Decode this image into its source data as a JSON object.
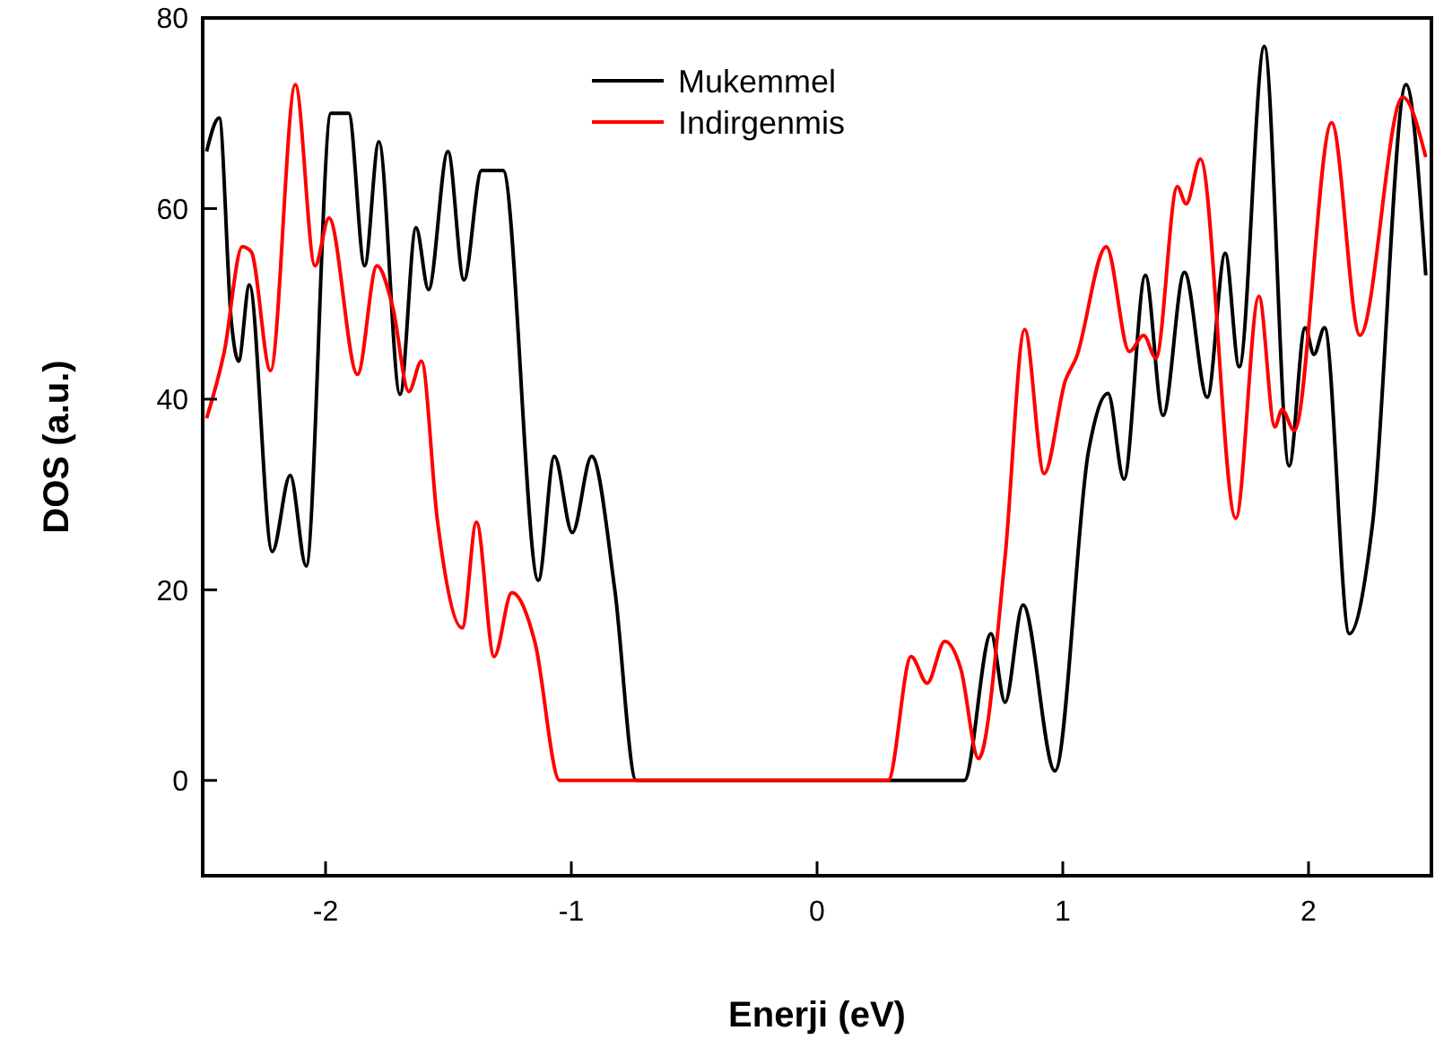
{
  "chart_data": {
    "type": "line",
    "xlabel": "Enerji (eV)",
    "ylabel": "DOS (a.u.)",
    "xlim": [
      -2.5,
      2.5
    ],
    "ylim": [
      -10,
      80
    ],
    "xticks": [
      -2,
      -1,
      0,
      1,
      2
    ],
    "yticks": [
      0,
      20,
      40,
      60,
      80
    ],
    "grid": false,
    "legend": "top",
    "marker": "none",
    "line_style": "solid",
    "series": [
      {
        "name": "Mukemmel",
        "color": "#000000",
        "x": [
          -2.484,
          -2.433,
          -2.383,
          -2.354,
          -2.31,
          -2.217,
          -2.144,
          -2.079,
          -1.978,
          -1.906,
          -1.841,
          -1.783,
          -1.697,
          -1.632,
          -1.581,
          -1.502,
          -1.437,
          -1.365,
          -1.278,
          -1.134,
          -1.069,
          -0.996,
          -0.917,
          -0.823,
          -0.736,
          0.0,
          0.599,
          0.708,
          0.765,
          0.838,
          0.968,
          1.105,
          1.184,
          1.249,
          1.336,
          1.408,
          1.495,
          1.588,
          1.661,
          1.718,
          1.82,
          1.921,
          1.986,
          2.022,
          2.065,
          2.166,
          2.26,
          2.397,
          2.477
        ],
        "values": [
          66,
          69.5,
          48,
          44,
          52,
          24,
          32,
          22.5,
          70,
          70,
          54,
          67,
          40.5,
          58,
          51.5,
          66,
          52.5,
          64,
          64,
          21,
          34,
          26,
          34,
          20,
          0,
          0,
          0,
          15.4,
          8.2,
          18.4,
          1,
          34.6,
          40.6,
          31.6,
          53,
          38.3,
          53.3,
          40.2,
          55.3,
          43.4,
          77,
          33,
          47.5,
          44.7,
          47.5,
          15.4,
          26.8,
          73,
          53
        ]
      },
      {
        "name": "Indirgenmis",
        "color": "#ff0000",
        "x": [
          -2.484,
          -2.412,
          -2.339,
          -2.303,
          -2.224,
          -2.123,
          -2.043,
          -1.986,
          -1.87,
          -1.791,
          -1.726,
          -1.661,
          -1.61,
          -1.545,
          -1.444,
          -1.386,
          -1.314,
          -1.242,
          -1.148,
          -1.047,
          0.0,
          0.289,
          0.383,
          0.448,
          0.52,
          0.585,
          0.657,
          0.765,
          0.845,
          0.924,
          1.011,
          1.054,
          1.177,
          1.271,
          1.329,
          1.379,
          1.466,
          1.502,
          1.56,
          1.704,
          1.798,
          1.863,
          1.892,
          1.942,
          2.094,
          2.209,
          2.383,
          2.477
        ],
        "values": [
          38,
          45,
          56,
          55.5,
          43,
          73,
          54,
          59,
          42.6,
          54,
          49.6,
          40.8,
          44,
          27.3,
          16,
          27.1,
          13,
          19.7,
          14.5,
          0,
          0,
          0,
          13,
          10.2,
          14.6,
          11.7,
          2.3,
          23.4,
          47.3,
          32.2,
          42,
          44.3,
          56,
          45,
          46.7,
          44.3,
          62.3,
          60.5,
          65.2,
          27.5,
          50.8,
          37.1,
          38.9,
          36.7,
          69,
          46.7,
          71.7,
          65.4
        ]
      }
    ]
  }
}
